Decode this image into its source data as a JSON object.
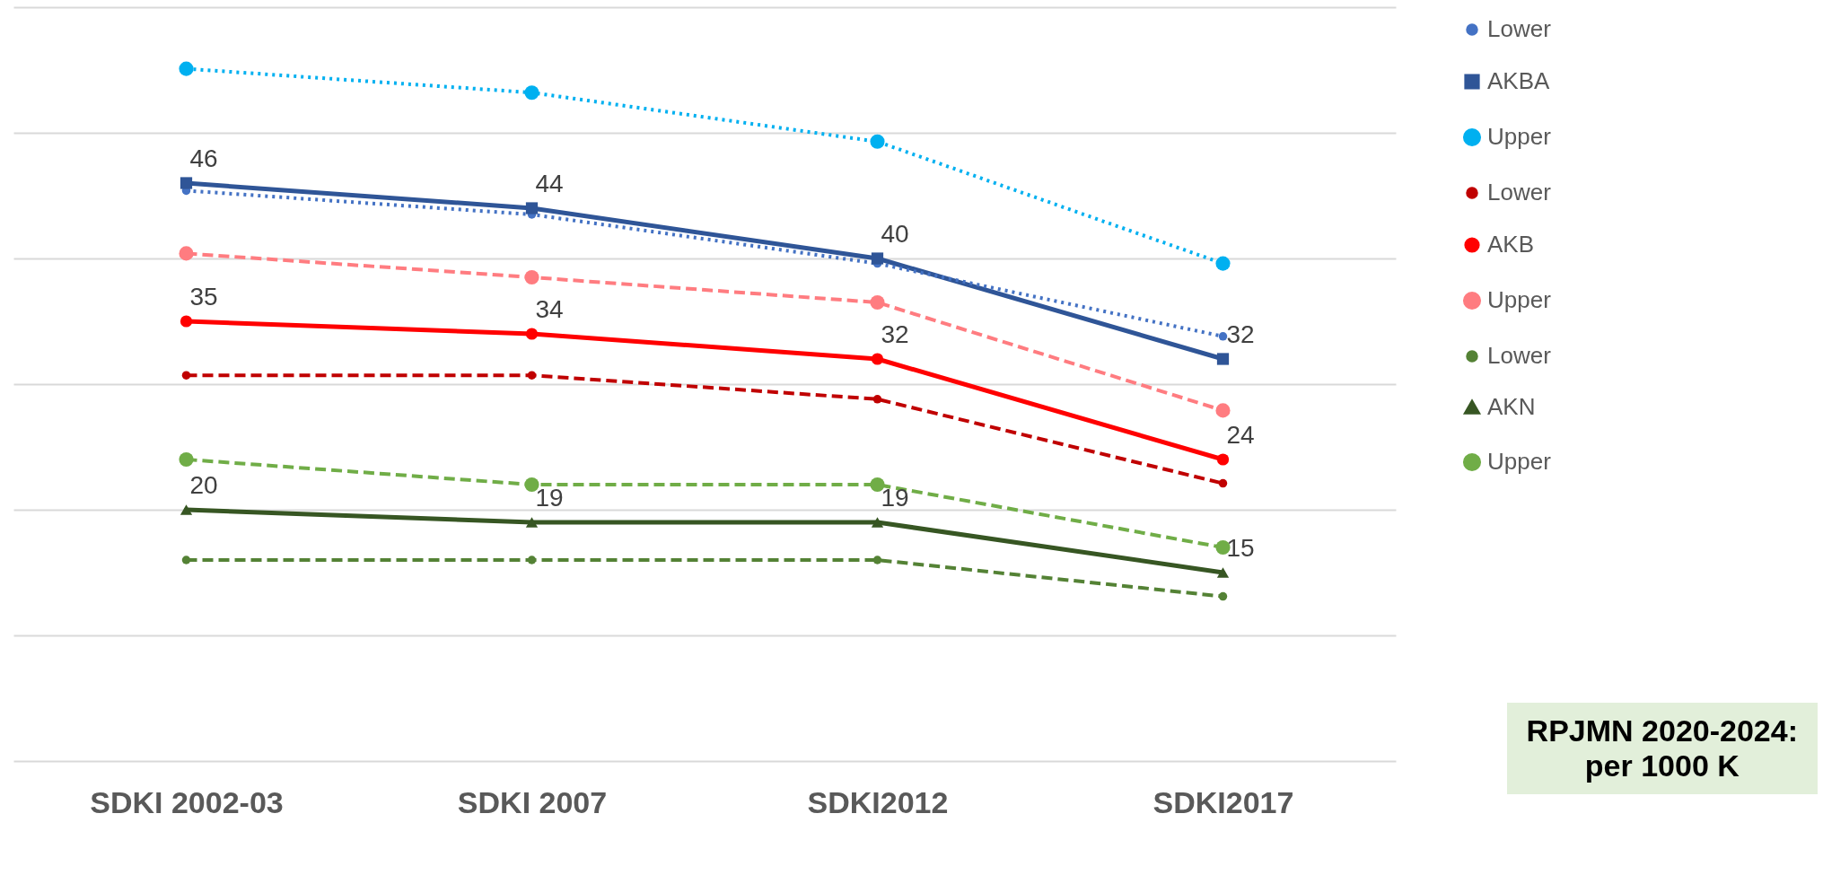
{
  "chart_data": {
    "type": "line",
    "categories": [
      "SDKI 2002-03",
      "SDKI 2007",
      "SDKI2012",
      "SDKI2017"
    ],
    "ylim": [
      0,
      60
    ],
    "yticks": [
      {
        "value": 0,
        "label": null
      },
      {
        "value": 10,
        "label": null
      },
      {
        "value": 20,
        "label": null
      },
      {
        "value": 30,
        "label": null
      },
      {
        "value": 40,
        "label": null
      },
      {
        "value": 50,
        "label": null
      },
      {
        "value": 60,
        "label": null
      }
    ],
    "grid": "y",
    "tick_labels": "x",
    "legend": "right",
    "series": [
      {
        "name": "Lower",
        "color": "#4472c4",
        "values": [
          45.4,
          43.5,
          39.6,
          33.8
        ],
        "marker": "circle",
        "line_style": "dotted"
      },
      {
        "name": "AKBA",
        "color": "#2f5597",
        "values": [
          46,
          44,
          40,
          32
        ],
        "value_labels": [
          "46",
          "44",
          "40",
          "32"
        ],
        "marker": "square",
        "line_style": "solid"
      },
      {
        "name": "Upper",
        "color": "#00b0f0",
        "values": [
          55.1,
          53.2,
          49.3,
          39.6
        ],
        "marker": "circle",
        "line_style": "dotted"
      },
      {
        "name": "Lower",
        "color": "#c00000",
        "values": [
          30.7,
          30.7,
          28.8,
          22.1
        ],
        "marker": "circle",
        "line_style": "dashed"
      },
      {
        "name": "AKB",
        "color": "#ff0000",
        "values": [
          35,
          34,
          32,
          24
        ],
        "value_labels": [
          "35",
          "34",
          "32",
          "24"
        ],
        "marker": "circle",
        "line_style": "solid"
      },
      {
        "name": "Upper",
        "color": "#ff7c80",
        "values": [
          40.4,
          38.5,
          36.5,
          27.9
        ],
        "marker": "circle",
        "line_style": "dashed"
      },
      {
        "name": "Lower",
        "color": "#548235",
        "values": [
          16,
          16,
          16,
          13.1
        ],
        "marker": "circle",
        "line_style": "dashed"
      },
      {
        "name": "AKN",
        "color": "#375623",
        "values": [
          20,
          19,
          19,
          15
        ],
        "value_labels": [
          "20",
          "19",
          "19",
          "15"
        ],
        "marker": "triangle",
        "line_style": "solid"
      },
      {
        "name": "Upper",
        "color": "#70ad47",
        "values": [
          24,
          22,
          22,
          17
        ],
        "marker": "circle",
        "line_style": "dashed"
      }
    ],
    "annotations": [
      "RPJMN 2020-2024:\nper 1000 K"
    ]
  }
}
